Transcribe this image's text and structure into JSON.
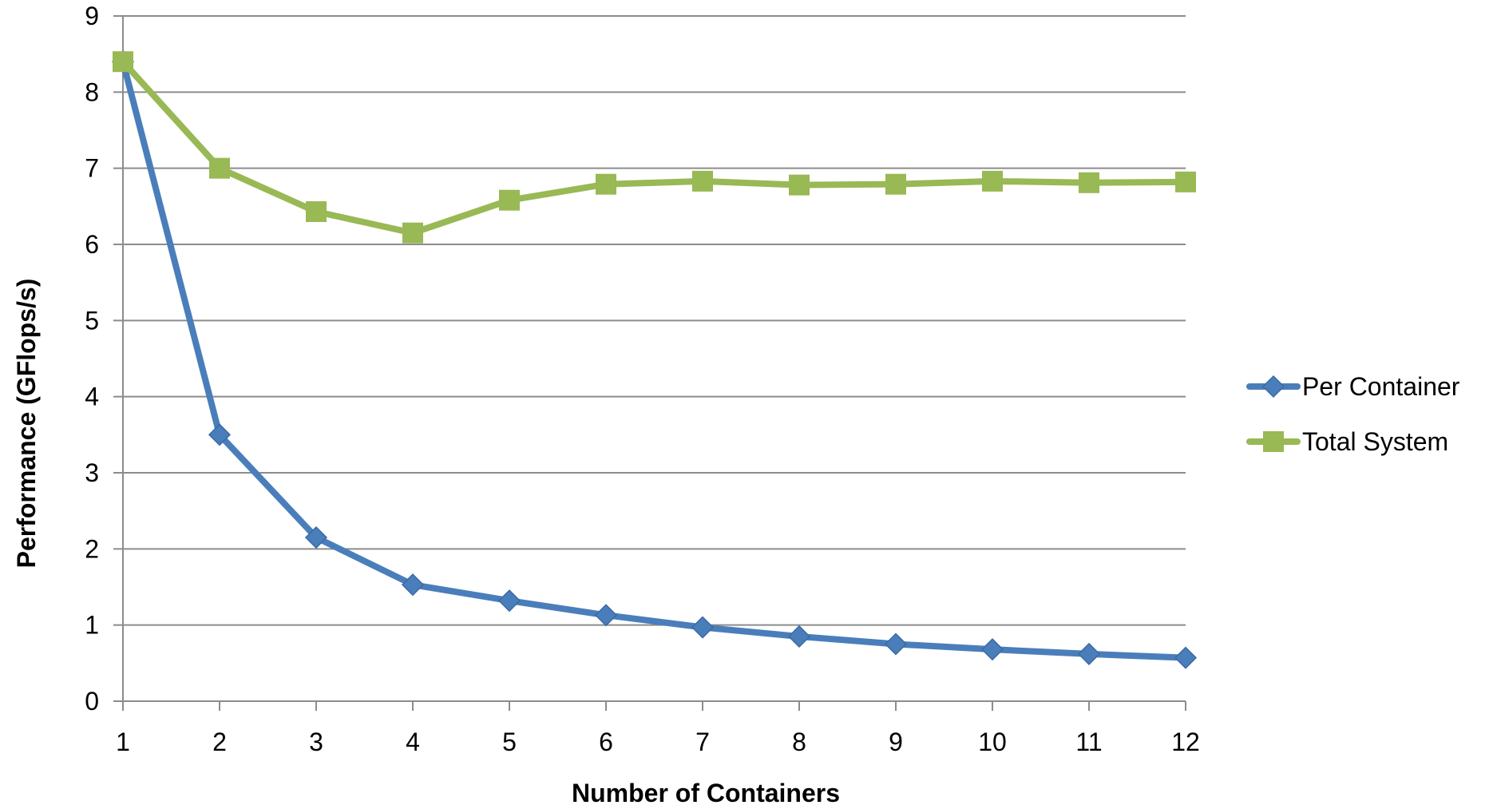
{
  "chart_data": {
    "type": "line",
    "title": "",
    "xlabel": "Number of Containers",
    "ylabel": "Performance (GFlops/s)",
    "x": [
      1,
      2,
      3,
      4,
      5,
      6,
      7,
      8,
      9,
      10,
      11,
      12
    ],
    "ylim": [
      0,
      9
    ],
    "yticks": [
      0,
      1,
      2,
      3,
      4,
      5,
      6,
      7,
      8,
      9
    ],
    "xtick_labels": [
      "1",
      "2",
      "3",
      "4",
      "5",
      "6",
      "7",
      "8",
      "9",
      "10",
      "11",
      "12"
    ],
    "grid": "horizontal",
    "legend_position": "right",
    "series": [
      {
        "name": "Per Container",
        "color": "#4a7ebb",
        "marker": "diamond",
        "values": [
          8.4,
          3.5,
          2.15,
          1.53,
          1.32,
          1.13,
          0.97,
          0.85,
          0.75,
          0.68,
          0.62,
          0.57
        ]
      },
      {
        "name": "Total System",
        "color": "#98b954",
        "marker": "square",
        "values": [
          8.4,
          7.0,
          6.43,
          6.15,
          6.58,
          6.79,
          6.83,
          6.78,
          6.79,
          6.83,
          6.81,
          6.82
        ]
      }
    ]
  }
}
